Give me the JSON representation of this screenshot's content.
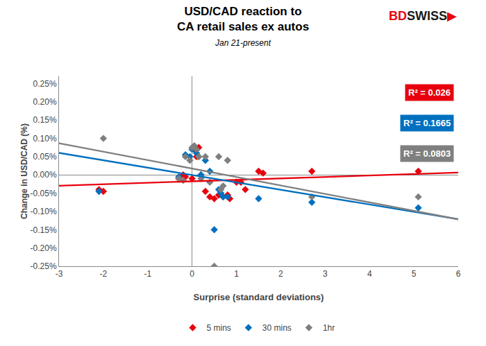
{
  "chart_data": {
    "type": "scatter",
    "title": [
      "USD/CAD reaction to",
      "CA retail sales ex autos"
    ],
    "subtitle": "Jan 21-present",
    "xlabel": "Surprise (standard deviations)",
    "ylabel": "Change in USD/CAD (%)",
    "xlim": [
      -3,
      6
    ],
    "ylim": [
      -0.0025,
      0.0027
    ],
    "xticks": [
      -3,
      -2,
      -1,
      0,
      1,
      2,
      3,
      4,
      5,
      6
    ],
    "yticks": [
      {
        "value": -0.0025,
        "label": "-0.25%"
      },
      {
        "value": -0.002,
        "label": "-0.20%"
      },
      {
        "value": -0.0015,
        "label": "-0.15%"
      },
      {
        "value": -0.001,
        "label": "-0.10%"
      },
      {
        "value": -0.0005,
        "label": "-0.05%"
      },
      {
        "value": 0,
        "label": "0.00%"
      },
      {
        "value": 0.0005,
        "label": "0.05%"
      },
      {
        "value": 0.001,
        "label": "0.10%"
      },
      {
        "value": 0.0015,
        "label": "0.15%"
      },
      {
        "value": 0.002,
        "label": "0.20%"
      },
      {
        "value": 0.0025,
        "label": "0.25%"
      }
    ],
    "grid": false,
    "legend": "bottom",
    "series": [
      {
        "name": "5 mins",
        "type": "scatter",
        "marker": "diamond",
        "color": "#e8000d",
        "x": [
          -2.1,
          -2.0,
          -0.3,
          -0.2,
          -0.15,
          0.0,
          0.05,
          0.1,
          0.15,
          0.2,
          0.3,
          0.4,
          0.5,
          0.6,
          0.7,
          0.8,
          0.85,
          1.0,
          1.1,
          1.2,
          1.5,
          1.6,
          2.7,
          5.1
        ],
        "values": [
          -0.0004,
          -0.00045,
          -0.0001,
          0.0,
          -5e-05,
          -0.0001,
          0.0007,
          0.0005,
          0.00075,
          0.0,
          -0.00045,
          -0.0006,
          -0.00065,
          -0.00055,
          -0.0006,
          -0.00055,
          -0.00065,
          -0.0002,
          -0.0002,
          -0.0004,
          0.0001,
          5e-05,
          0.0001,
          0.0001
        ]
      },
      {
        "name": "30 mins",
        "type": "scatter",
        "marker": "diamond",
        "color": "#0070c0",
        "x": [
          -2.1,
          -0.3,
          -0.15,
          -0.05,
          0.0,
          0.05,
          0.1,
          0.15,
          0.2,
          0.3,
          0.4,
          0.5,
          0.6,
          0.65,
          0.7,
          0.8,
          1.5,
          2.7,
          5.1
        ],
        "values": [
          -0.00045,
          -5e-05,
          0.00055,
          0.0005,
          0.0007,
          0.00075,
          0.0006,
          0.0005,
          0.0,
          0.0004,
          0.0001,
          -0.0015,
          -0.0004,
          -0.0005,
          -0.0006,
          -0.0006,
          -0.00065,
          -0.00075,
          -0.0009
        ]
      },
      {
        "name": "1hr",
        "type": "scatter",
        "marker": "diamond",
        "color": "#7f7f7f",
        "x": [
          -2.0,
          -0.3,
          -0.2,
          -0.15,
          -0.05,
          0.0,
          0.05,
          0.1,
          0.15,
          0.2,
          0.3,
          0.4,
          0.5,
          0.6,
          0.65,
          0.7,
          0.8,
          2.7,
          5.1
        ],
        "values": [
          0.001,
          -0.0001,
          -0.00015,
          0.0005,
          0.0004,
          0.00075,
          0.0008,
          0.0007,
          0.0005,
          -0.0001,
          0.0005,
          -0.0002,
          -0.0025,
          0.0005,
          -0.0004,
          -0.0003,
          0.0004,
          -0.0006,
          -0.0006
        ]
      },
      {
        "type": "line",
        "line_style": "solid",
        "color": "#e8000d",
        "x": [
          -3,
          6
        ],
        "values": [
          -0.00029509,
          6.367e-05
        ]
      },
      {
        "type": "line",
        "line_style": "solid",
        "color": "#0070c0",
        "x": [
          -3,
          6
        ],
        "values": [
          0.00060293,
          -0.00121367
        ]
      },
      {
        "type": "line",
        "line_style": "solid",
        "color": "#7f7f7f",
        "x": [
          -3,
          6
        ],
        "values": [
          0.0008685,
          -0.00121434
        ]
      }
    ],
    "annotations": [
      {
        "text": "R² = 0.026",
        "color": "#e8000d"
      },
      {
        "text": "R² = 0.1665",
        "color": "#0070c0"
      },
      {
        "text": "R² = 0.0803",
        "color": "#7f7f7f"
      }
    ],
    "logo": [
      {
        "text": "BD",
        "color": "#e8000d"
      },
      {
        "text": "SWISS",
        "color": "#1a1a1a"
      },
      {
        "text": "▶",
        "color": "#e8000d"
      }
    ]
  }
}
